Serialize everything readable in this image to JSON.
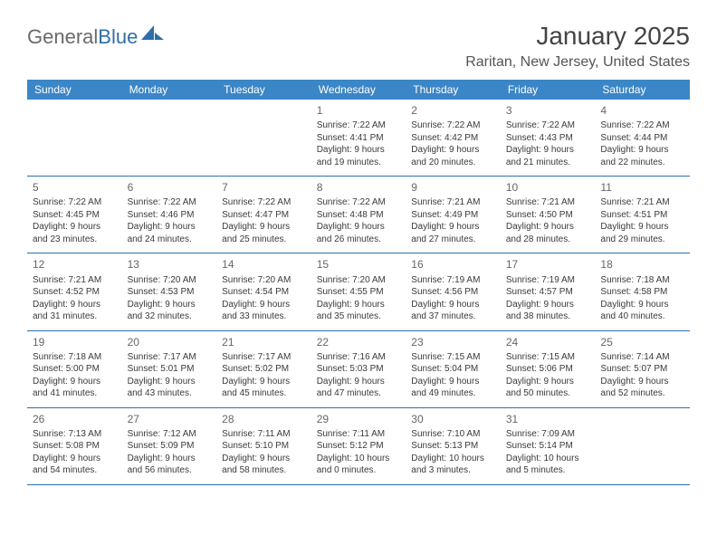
{
  "brand": {
    "part1": "General",
    "part2": "Blue"
  },
  "title": {
    "monthYear": "January 2025",
    "location": "Raritan, New Jersey, United States"
  },
  "colors": {
    "headerBar": "#3b86c6",
    "ruleLine": "#2f6fa8",
    "text": "#3a3a3a",
    "muted": "#666666"
  },
  "weekdays": [
    "Sunday",
    "Monday",
    "Tuesday",
    "Wednesday",
    "Thursday",
    "Friday",
    "Saturday"
  ],
  "weeks": [
    [
      null,
      null,
      null,
      {
        "n": "1",
        "sunrise": "7:22 AM",
        "sunset": "4:41 PM",
        "daylight": "9 hours and 19 minutes."
      },
      {
        "n": "2",
        "sunrise": "7:22 AM",
        "sunset": "4:42 PM",
        "daylight": "9 hours and 20 minutes."
      },
      {
        "n": "3",
        "sunrise": "7:22 AM",
        "sunset": "4:43 PM",
        "daylight": "9 hours and 21 minutes."
      },
      {
        "n": "4",
        "sunrise": "7:22 AM",
        "sunset": "4:44 PM",
        "daylight": "9 hours and 22 minutes."
      }
    ],
    [
      {
        "n": "5",
        "sunrise": "7:22 AM",
        "sunset": "4:45 PM",
        "daylight": "9 hours and 23 minutes."
      },
      {
        "n": "6",
        "sunrise": "7:22 AM",
        "sunset": "4:46 PM",
        "daylight": "9 hours and 24 minutes."
      },
      {
        "n": "7",
        "sunrise": "7:22 AM",
        "sunset": "4:47 PM",
        "daylight": "9 hours and 25 minutes."
      },
      {
        "n": "8",
        "sunrise": "7:22 AM",
        "sunset": "4:48 PM",
        "daylight": "9 hours and 26 minutes."
      },
      {
        "n": "9",
        "sunrise": "7:21 AM",
        "sunset": "4:49 PM",
        "daylight": "9 hours and 27 minutes."
      },
      {
        "n": "10",
        "sunrise": "7:21 AM",
        "sunset": "4:50 PM",
        "daylight": "9 hours and 28 minutes."
      },
      {
        "n": "11",
        "sunrise": "7:21 AM",
        "sunset": "4:51 PM",
        "daylight": "9 hours and 29 minutes."
      }
    ],
    [
      {
        "n": "12",
        "sunrise": "7:21 AM",
        "sunset": "4:52 PM",
        "daylight": "9 hours and 31 minutes."
      },
      {
        "n": "13",
        "sunrise": "7:20 AM",
        "sunset": "4:53 PM",
        "daylight": "9 hours and 32 minutes."
      },
      {
        "n": "14",
        "sunrise": "7:20 AM",
        "sunset": "4:54 PM",
        "daylight": "9 hours and 33 minutes."
      },
      {
        "n": "15",
        "sunrise": "7:20 AM",
        "sunset": "4:55 PM",
        "daylight": "9 hours and 35 minutes."
      },
      {
        "n": "16",
        "sunrise": "7:19 AM",
        "sunset": "4:56 PM",
        "daylight": "9 hours and 37 minutes."
      },
      {
        "n": "17",
        "sunrise": "7:19 AM",
        "sunset": "4:57 PM",
        "daylight": "9 hours and 38 minutes."
      },
      {
        "n": "18",
        "sunrise": "7:18 AM",
        "sunset": "4:58 PM",
        "daylight": "9 hours and 40 minutes."
      }
    ],
    [
      {
        "n": "19",
        "sunrise": "7:18 AM",
        "sunset": "5:00 PM",
        "daylight": "9 hours and 41 minutes."
      },
      {
        "n": "20",
        "sunrise": "7:17 AM",
        "sunset": "5:01 PM",
        "daylight": "9 hours and 43 minutes."
      },
      {
        "n": "21",
        "sunrise": "7:17 AM",
        "sunset": "5:02 PM",
        "daylight": "9 hours and 45 minutes."
      },
      {
        "n": "22",
        "sunrise": "7:16 AM",
        "sunset": "5:03 PM",
        "daylight": "9 hours and 47 minutes."
      },
      {
        "n": "23",
        "sunrise": "7:15 AM",
        "sunset": "5:04 PM",
        "daylight": "9 hours and 49 minutes."
      },
      {
        "n": "24",
        "sunrise": "7:15 AM",
        "sunset": "5:06 PM",
        "daylight": "9 hours and 50 minutes."
      },
      {
        "n": "25",
        "sunrise": "7:14 AM",
        "sunset": "5:07 PM",
        "daylight": "9 hours and 52 minutes."
      }
    ],
    [
      {
        "n": "26",
        "sunrise": "7:13 AM",
        "sunset": "5:08 PM",
        "daylight": "9 hours and 54 minutes."
      },
      {
        "n": "27",
        "sunrise": "7:12 AM",
        "sunset": "5:09 PM",
        "daylight": "9 hours and 56 minutes."
      },
      {
        "n": "28",
        "sunrise": "7:11 AM",
        "sunset": "5:10 PM",
        "daylight": "9 hours and 58 minutes."
      },
      {
        "n": "29",
        "sunrise": "7:11 AM",
        "sunset": "5:12 PM",
        "daylight": "10 hours and 0 minutes."
      },
      {
        "n": "30",
        "sunrise": "7:10 AM",
        "sunset": "5:13 PM",
        "daylight": "10 hours and 3 minutes."
      },
      {
        "n": "31",
        "sunrise": "7:09 AM",
        "sunset": "5:14 PM",
        "daylight": "10 hours and 5 minutes."
      },
      null
    ]
  ],
  "labels": {
    "sunrise": "Sunrise:",
    "sunset": "Sunset:",
    "daylight": "Daylight:"
  }
}
